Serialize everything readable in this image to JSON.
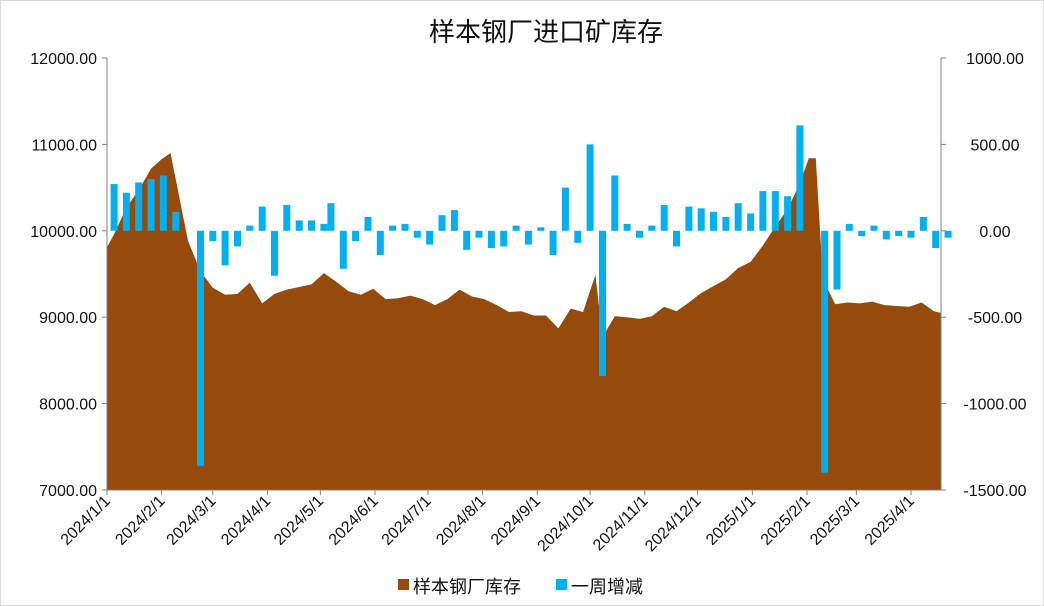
{
  "chart_data": {
    "type": "area+bar",
    "title": "样本钢厂进口矿库存",
    "left_axis": {
      "min": 7000,
      "max": 12000,
      "ticks": [
        "7000.00",
        "8000.00",
        "9000.00",
        "10000.00",
        "11000.00",
        "12000.00"
      ]
    },
    "right_axis": {
      "min": -1500,
      "max": 1000,
      "ticks": [
        "-1500.00",
        "-1000.00",
        "-500.00",
        "0.00",
        "500.00",
        "1000.00"
      ]
    },
    "x_ticks": [
      "2024/1/1",
      "2024/2/1",
      "2024/3/1",
      "2024/4/1",
      "2024/5/1",
      "2024/6/1",
      "2024/7/1",
      "2024/8/1",
      "2024/9/1",
      "2024/10/1",
      "2024/11/1",
      "2024/12/1",
      "2025/1/1",
      "2025/2/1",
      "2025/3/1",
      "2025/4/1"
    ],
    "x_date_range": [
      "2024-01-01",
      "2025-04-18"
    ],
    "series": [
      {
        "name": "样本钢厂库存",
        "type": "area",
        "color": "#964B0C",
        "axis": "left",
        "points": [
          [
            "2024-01-01",
            9810
          ],
          [
            "2024-01-05",
            9960
          ],
          [
            "2024-01-12",
            10270
          ],
          [
            "2024-01-19",
            10470
          ],
          [
            "2024-01-26",
            10720
          ],
          [
            "2024-02-01",
            10830
          ],
          [
            "2024-02-06",
            10900
          ],
          [
            "2024-02-16",
            9880
          ],
          [
            "2024-02-23",
            9530
          ],
          [
            "2024-03-01",
            9340
          ],
          [
            "2024-03-08",
            9260
          ],
          [
            "2024-03-15",
            9270
          ],
          [
            "2024-03-22",
            9400
          ],
          [
            "2024-03-29",
            9160
          ],
          [
            "2024-04-05",
            9270
          ],
          [
            "2024-04-12",
            9320
          ],
          [
            "2024-04-19",
            9350
          ],
          [
            "2024-04-26",
            9380
          ],
          [
            "2024-05-03",
            9510
          ],
          [
            "2024-05-10",
            9410
          ],
          [
            "2024-05-17",
            9300
          ],
          [
            "2024-05-24",
            9260
          ],
          [
            "2024-05-31",
            9330
          ],
          [
            "2024-06-07",
            9210
          ],
          [
            "2024-06-14",
            9220
          ],
          [
            "2024-06-21",
            9250
          ],
          [
            "2024-06-28",
            9210
          ],
          [
            "2024-07-05",
            9140
          ],
          [
            "2024-07-12",
            9210
          ],
          [
            "2024-07-19",
            9320
          ],
          [
            "2024-07-26",
            9240
          ],
          [
            "2024-08-02",
            9210
          ],
          [
            "2024-08-09",
            9140
          ],
          [
            "2024-08-16",
            9060
          ],
          [
            "2024-08-23",
            9070
          ],
          [
            "2024-08-30",
            9020
          ],
          [
            "2024-09-06",
            9020
          ],
          [
            "2024-09-13",
            8870
          ],
          [
            "2024-09-20",
            9100
          ],
          [
            "2024-09-27",
            9060
          ],
          [
            "2024-10-04",
            9490
          ],
          [
            "2024-10-08",
            8770
          ],
          [
            "2024-10-15",
            9010
          ],
          [
            "2024-10-22",
            9000
          ],
          [
            "2024-10-29",
            8980
          ],
          [
            "2024-11-05",
            9010
          ],
          [
            "2024-11-12",
            9120
          ],
          [
            "2024-11-19",
            9070
          ],
          [
            "2024-11-26",
            9170
          ],
          [
            "2024-12-03",
            9280
          ],
          [
            "2024-12-10",
            9360
          ],
          [
            "2024-12-17",
            9440
          ],
          [
            "2024-12-24",
            9570
          ],
          [
            "2024-12-31",
            9640
          ],
          [
            "2025-01-07",
            9830
          ],
          [
            "2025-01-14",
            10050
          ],
          [
            "2025-01-21",
            10250
          ],
          [
            "2025-01-28",
            10550
          ],
          [
            "2025-02-02",
            10840
          ],
          [
            "2025-02-06",
            10840
          ],
          [
            "2025-02-10",
            9440
          ],
          [
            "2025-02-17",
            9150
          ],
          [
            "2025-02-24",
            9170
          ],
          [
            "2025-03-03",
            9160
          ],
          [
            "2025-03-10",
            9180
          ],
          [
            "2025-03-17",
            9140
          ],
          [
            "2025-03-24",
            9130
          ],
          [
            "2025-03-31",
            9120
          ],
          [
            "2025-04-07",
            9170
          ],
          [
            "2025-04-14",
            9070
          ],
          [
            "2025-04-18",
            9050
          ]
        ]
      },
      {
        "name": "一周增减",
        "type": "bar",
        "color": "#00B0F0",
        "axis": "right",
        "points": [
          [
            "2024-01-05",
            270
          ],
          [
            "2024-01-12",
            220
          ],
          [
            "2024-01-19",
            280
          ],
          [
            "2024-01-26",
            300
          ],
          [
            "2024-02-02",
            320
          ],
          [
            "2024-02-09",
            110
          ],
          [
            "2024-02-23",
            -1360
          ],
          [
            "2024-03-01",
            -60
          ],
          [
            "2024-03-08",
            -200
          ],
          [
            "2024-03-15",
            -90
          ],
          [
            "2024-03-22",
            30
          ],
          [
            "2024-03-29",
            140
          ],
          [
            "2024-04-05",
            -260
          ],
          [
            "2024-04-12",
            150
          ],
          [
            "2024-04-19",
            60
          ],
          [
            "2024-04-26",
            60
          ],
          [
            "2024-05-03",
            40
          ],
          [
            "2024-05-07",
            160
          ],
          [
            "2024-05-14",
            -220
          ],
          [
            "2024-05-21",
            -60
          ],
          [
            "2024-05-28",
            80
          ],
          [
            "2024-06-04",
            -140
          ],
          [
            "2024-06-11",
            30
          ],
          [
            "2024-06-18",
            40
          ],
          [
            "2024-06-25",
            -40
          ],
          [
            "2024-07-02",
            -80
          ],
          [
            "2024-07-09",
            90
          ],
          [
            "2024-07-16",
            120
          ],
          [
            "2024-07-23",
            -110
          ],
          [
            "2024-07-30",
            -40
          ],
          [
            "2024-08-06",
            -100
          ],
          [
            "2024-08-13",
            -90
          ],
          [
            "2024-08-20",
            30
          ],
          [
            "2024-08-27",
            -80
          ],
          [
            "2024-09-03",
            20
          ],
          [
            "2024-09-10",
            -140
          ],
          [
            "2024-09-17",
            250
          ],
          [
            "2024-09-24",
            -70
          ],
          [
            "2024-10-01",
            500
          ],
          [
            "2024-10-08",
            -840
          ],
          [
            "2024-10-15",
            320
          ],
          [
            "2024-10-22",
            40
          ],
          [
            "2024-10-29",
            -40
          ],
          [
            "2024-11-05",
            30
          ],
          [
            "2024-11-12",
            150
          ],
          [
            "2024-11-19",
            -90
          ],
          [
            "2024-11-26",
            140
          ],
          [
            "2024-12-03",
            130
          ],
          [
            "2024-12-10",
            110
          ],
          [
            "2024-12-17",
            80
          ],
          [
            "2024-12-24",
            160
          ],
          [
            "2024-12-31",
            100
          ],
          [
            "2025-01-07",
            230
          ],
          [
            "2025-01-14",
            230
          ],
          [
            "2025-01-21",
            200
          ],
          [
            "2025-01-28",
            610
          ],
          [
            "2025-02-11",
            -1400
          ],
          [
            "2025-02-18",
            -340
          ],
          [
            "2025-02-25",
            40
          ],
          [
            "2025-03-04",
            -30
          ],
          [
            "2025-03-11",
            30
          ],
          [
            "2025-03-18",
            -50
          ],
          [
            "2025-03-25",
            -30
          ],
          [
            "2025-04-01",
            -40
          ],
          [
            "2025-04-08",
            80
          ],
          [
            "2025-04-15",
            -100
          ],
          [
            "2025-04-22",
            -40
          ]
        ]
      }
    ],
    "legend": {
      "position": "bottom"
    }
  },
  "legend": {
    "area_label": "样本钢厂库存",
    "bar_label": "一周增减"
  }
}
